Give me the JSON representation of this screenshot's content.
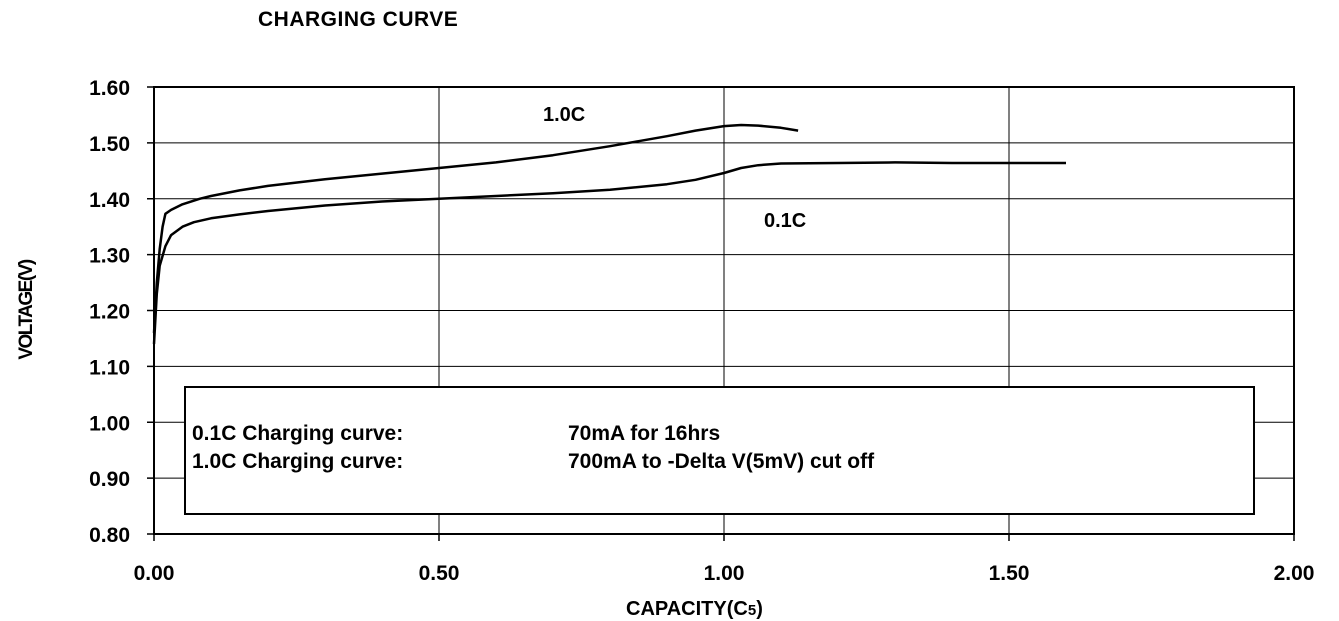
{
  "chart_data": {
    "type": "line",
    "title": "CHARGING CURVE",
    "xlabel_main": "CAPACITY(C",
    "xlabel_sub": "5",
    "xlabel_close": ")",
    "ylabel": "VOLTAGE(V)",
    "xlim": [
      0,
      2.0
    ],
    "ylim": [
      0.8,
      1.6
    ],
    "x_ticks": [
      "0.00",
      "0.50",
      "1.00",
      "1.50",
      "2.00"
    ],
    "y_ticks": [
      "0.80",
      "0.90",
      "1.00",
      "1.10",
      "1.20",
      "1.30",
      "1.40",
      "1.50",
      "1.60"
    ],
    "grid": true,
    "series": [
      {
        "name": "1.0C",
        "x": [
          0.0,
          0.005,
          0.01,
          0.015,
          0.02,
          0.03,
          0.05,
          0.08,
          0.1,
          0.15,
          0.2,
          0.3,
          0.4,
          0.5,
          0.6,
          0.7,
          0.8,
          0.85,
          0.9,
          0.95,
          1.0,
          1.03,
          1.06,
          1.1,
          1.13
        ],
        "y": [
          1.16,
          1.25,
          1.31,
          1.35,
          1.373,
          1.38,
          1.39,
          1.4,
          1.405,
          1.415,
          1.423,
          1.435,
          1.445,
          1.455,
          1.465,
          1.478,
          1.494,
          1.503,
          1.512,
          1.522,
          1.53,
          1.532,
          1.531,
          1.527,
          1.522
        ]
      },
      {
        "name": "0.1C",
        "x": [
          0.0,
          0.005,
          0.01,
          0.02,
          0.03,
          0.05,
          0.07,
          0.1,
          0.15,
          0.2,
          0.3,
          0.4,
          0.5,
          0.6,
          0.7,
          0.8,
          0.9,
          0.95,
          1.0,
          1.03,
          1.06,
          1.1,
          1.2,
          1.3,
          1.4,
          1.5,
          1.6
        ],
        "y": [
          1.14,
          1.23,
          1.28,
          1.315,
          1.335,
          1.35,
          1.358,
          1.365,
          1.372,
          1.378,
          1.388,
          1.395,
          1.4,
          1.405,
          1.41,
          1.416,
          1.426,
          1.434,
          1.446,
          1.455,
          1.46,
          1.463,
          1.464,
          1.465,
          1.464,
          1.464,
          1.464
        ]
      }
    ],
    "annotation_lines": [
      {
        "label": "0.1C Charging curve:",
        "value": "70mA for 16hrs"
      },
      {
        "label": "1.0C Charging curve:",
        "value": "700mA to -Delta V(5mV) cut off"
      }
    ]
  }
}
